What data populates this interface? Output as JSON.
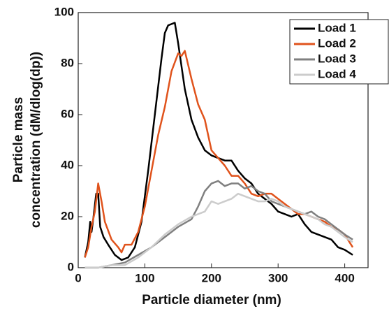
{
  "chart_data": {
    "type": "line",
    "x_label": "Particle diameter (nm)",
    "y_label": [
      "Particle mass",
      "concentration (dM/dlog(dp))"
    ],
    "xlim": [
      0,
      435
    ],
    "xticks": [
      0,
      100,
      200,
      300,
      400
    ],
    "ylim": [
      0,
      100
    ],
    "yticks": [
      0,
      20,
      40,
      60,
      80,
      100
    ],
    "legend": "upper right",
    "series": [
      {
        "name": "Load 1",
        "color": "#000000",
        "x": [
          10,
          15,
          18,
          20,
          23,
          27,
          30,
          33,
          38,
          45,
          55,
          65,
          75,
          85,
          95,
          105,
          115,
          125,
          130,
          135,
          145,
          150,
          160,
          170,
          180,
          190,
          200,
          210,
          220,
          230,
          240,
          250,
          260,
          270,
          280,
          290,
          300,
          310,
          320,
          330,
          340,
          350,
          360,
          370,
          380,
          390,
          400,
          412
        ],
        "values": [
          4,
          10,
          18,
          14,
          20,
          29,
          29,
          16,
          12,
          9,
          5,
          3,
          4,
          8,
          18,
          38,
          60,
          82,
          92,
          95,
          96,
          88,
          70,
          58,
          51,
          46,
          44,
          43,
          42,
          42,
          38,
          35,
          33,
          29,
          27,
          25,
          22,
          21,
          20,
          21,
          17,
          14,
          13,
          12,
          11,
          8,
          7,
          5
        ]
      },
      {
        "name": "Load 2",
        "color": "#e0531c",
        "x": [
          10,
          15,
          20,
          25,
          30,
          35,
          40,
          50,
          60,
          65,
          70,
          80,
          90,
          100,
          110,
          120,
          130,
          140,
          150,
          155,
          160,
          170,
          180,
          190,
          200,
          210,
          220,
          230,
          240,
          250,
          260,
          270,
          280,
          290,
          300,
          310,
          320,
          330,
          340,
          350,
          360,
          370,
          380,
          390,
          400,
          412
        ],
        "values": [
          4,
          8,
          16,
          22,
          33,
          26,
          18,
          11,
          8,
          6,
          9,
          9,
          14,
          24,
          38,
          52,
          63,
          77,
          84,
          83,
          85,
          74,
          64,
          58,
          46,
          43,
          40,
          36,
          36,
          33,
          29,
          28,
          29,
          29,
          27,
          25,
          23,
          21,
          21,
          20,
          19,
          18,
          16,
          15,
          13,
          8
        ]
      },
      {
        "name": "Load 3",
        "color": "#808080",
        "x": [
          10,
          30,
          50,
          70,
          90,
          110,
          130,
          150,
          170,
          180,
          190,
          200,
          210,
          220,
          230,
          240,
          250,
          260,
          270,
          280,
          290,
          300,
          310,
          320,
          330,
          340,
          350,
          360,
          370,
          380,
          390,
          400,
          412
        ],
        "values": [
          0,
          0,
          1,
          2,
          5,
          8,
          12,
          16,
          19,
          24,
          30,
          33,
          34,
          32,
          33,
          33,
          31,
          32,
          30,
          29,
          26,
          25,
          24,
          23,
          22,
          21,
          22,
          20,
          19,
          17,
          15,
          13,
          11
        ]
      },
      {
        "name": "Load 4",
        "color": "#cccccc",
        "x": [
          10,
          30,
          50,
          70,
          90,
          110,
          130,
          150,
          170,
          190,
          200,
          210,
          220,
          230,
          240,
          250,
          260,
          270,
          280,
          290,
          300,
          310,
          320,
          330,
          340,
          350,
          360,
          370,
          380,
          390,
          400,
          412
        ],
        "values": [
          0,
          0,
          1,
          1,
          4,
          8,
          13,
          17,
          20,
          22,
          26,
          25,
          26,
          27,
          29,
          28,
          27,
          26,
          26,
          27,
          26,
          24,
          23,
          22,
          21,
          20,
          19,
          17,
          16,
          14,
          12,
          10
        ]
      }
    ]
  }
}
